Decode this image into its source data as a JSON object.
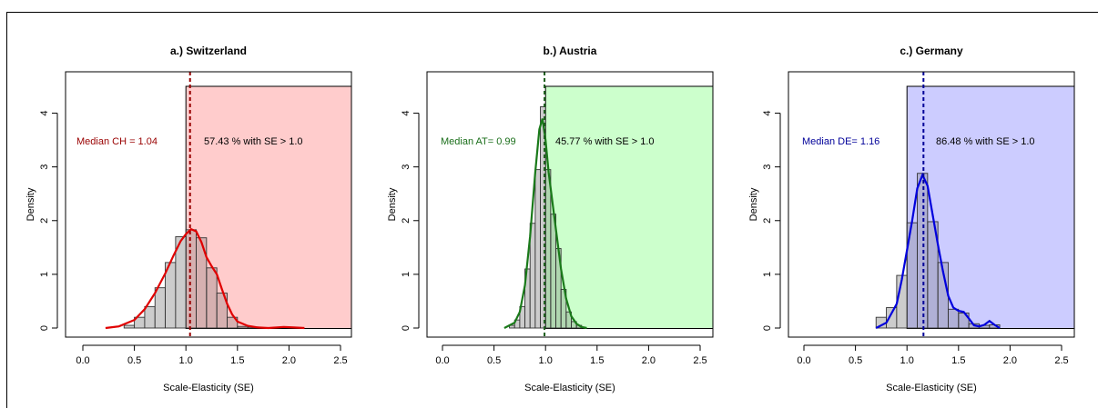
{
  "chart_data": [
    {
      "type": "histogram",
      "title": "a.) Switzerland",
      "xlabel": "Scale-Elasticity (SE)",
      "ylabel": "Density",
      "xlim": [
        0.0,
        2.5
      ],
      "ylim": [
        0,
        4.5
      ],
      "x_ticks": [
        "0.0",
        "0.5",
        "1.0",
        "1.5",
        "2.0",
        "2.5"
      ],
      "y_ticks": [
        "0",
        "1",
        "2",
        "3",
        "4"
      ],
      "bin_width": 0.1,
      "bins": [
        {
          "x0": 0.4,
          "x1": 0.5,
          "density": 0.05
        },
        {
          "x0": 0.5,
          "x1": 0.6,
          "density": 0.2
        },
        {
          "x0": 0.6,
          "x1": 0.7,
          "density": 0.4
        },
        {
          "x0": 0.7,
          "x1": 0.8,
          "density": 0.75
        },
        {
          "x0": 0.8,
          "x1": 0.9,
          "density": 1.22
        },
        {
          "x0": 0.9,
          "x1": 1.0,
          "density": 1.7
        },
        {
          "x0": 1.0,
          "x1": 1.1,
          "density": 1.83
        },
        {
          "x0": 1.1,
          "x1": 1.2,
          "density": 1.68
        },
        {
          "x0": 1.2,
          "x1": 1.3,
          "density": 1.12
        },
        {
          "x0": 1.3,
          "x1": 1.4,
          "density": 0.65
        },
        {
          "x0": 1.4,
          "x1": 1.5,
          "density": 0.2
        },
        {
          "x0": 1.5,
          "x1": 1.6,
          "density": 0.03
        },
        {
          "x0": 1.6,
          "x1": 1.7,
          "density": 0.02
        }
      ],
      "density_curve": [
        [
          0.22,
          0.0
        ],
        [
          0.35,
          0.03
        ],
        [
          0.5,
          0.15
        ],
        [
          0.6,
          0.35
        ],
        [
          0.7,
          0.65
        ],
        [
          0.8,
          1.02
        ],
        [
          0.88,
          1.35
        ],
        [
          0.95,
          1.62
        ],
        [
          1.0,
          1.75
        ],
        [
          1.05,
          1.84
        ],
        [
          1.1,
          1.8
        ],
        [
          1.15,
          1.6
        ],
        [
          1.2,
          1.32
        ],
        [
          1.25,
          1.15
        ],
        [
          1.3,
          1.0
        ],
        [
          1.35,
          0.72
        ],
        [
          1.4,
          0.45
        ],
        [
          1.45,
          0.25
        ],
        [
          1.5,
          0.12
        ],
        [
          1.6,
          0.04
        ],
        [
          1.7,
          0.01
        ],
        [
          1.8,
          0.0
        ],
        [
          1.95,
          0.02
        ],
        [
          2.05,
          0.01
        ],
        [
          2.15,
          0.0
        ]
      ],
      "median": 1.04,
      "median_label": "Median CH = 1.04",
      "share_label": "57.43 % with SE > 1.0",
      "shade_from": 1.0,
      "colors": {
        "line": "#e00000",
        "shade": "#ffcccc",
        "median_text": "#990000",
        "bar": "#cccccc"
      }
    },
    {
      "type": "histogram",
      "title": "b.) Austria",
      "xlabel": "Scale-Elasticity (SE)",
      "ylabel": "Density",
      "xlim": [
        0.0,
        2.5
      ],
      "ylim": [
        0,
        4.5
      ],
      "x_ticks": [
        "0.0",
        "0.5",
        "1.0",
        "1.5",
        "2.0",
        "2.5"
      ],
      "y_ticks": [
        "0",
        "1",
        "2",
        "3",
        "4"
      ],
      "bin_width": 0.05,
      "bins": [
        {
          "x0": 0.65,
          "x1": 0.7,
          "density": 0.05
        },
        {
          "x0": 0.7,
          "x1": 0.75,
          "density": 0.15
        },
        {
          "x0": 0.75,
          "x1": 0.8,
          "density": 0.4
        },
        {
          "x0": 0.8,
          "x1": 0.85,
          "density": 1.1
        },
        {
          "x0": 0.85,
          "x1": 0.9,
          "density": 1.95
        },
        {
          "x0": 0.9,
          "x1": 0.95,
          "density": 2.95
        },
        {
          "x0": 0.95,
          "x1": 1.0,
          "density": 4.12
        },
        {
          "x0": 1.0,
          "x1": 1.05,
          "density": 2.95
        },
        {
          "x0": 1.05,
          "x1": 1.1,
          "density": 2.12
        },
        {
          "x0": 1.1,
          "x1": 1.15,
          "density": 1.48
        },
        {
          "x0": 1.15,
          "x1": 1.2,
          "density": 0.72
        },
        {
          "x0": 1.2,
          "x1": 1.25,
          "density": 0.3
        },
        {
          "x0": 1.25,
          "x1": 1.3,
          "density": 0.12
        },
        {
          "x0": 1.3,
          "x1": 1.35,
          "density": 0.05
        }
      ],
      "density_curve": [
        [
          0.6,
          0.0
        ],
        [
          0.7,
          0.1
        ],
        [
          0.75,
          0.3
        ],
        [
          0.8,
          0.8
        ],
        [
          0.85,
          1.7
        ],
        [
          0.9,
          2.9
        ],
        [
          0.94,
          3.7
        ],
        [
          0.97,
          3.9
        ],
        [
          1.0,
          3.5
        ],
        [
          1.03,
          2.9
        ],
        [
          1.07,
          2.3
        ],
        [
          1.1,
          1.85
        ],
        [
          1.15,
          1.1
        ],
        [
          1.2,
          0.55
        ],
        [
          1.25,
          0.22
        ],
        [
          1.3,
          0.08
        ],
        [
          1.35,
          0.02
        ],
        [
          1.4,
          0.0
        ]
      ],
      "median": 0.99,
      "median_label": "Median AT= 0.99",
      "share_label": "45.77 % with SE > 1.0",
      "shade_from": 1.0,
      "colors": {
        "line": "#1a7a1a",
        "shade": "#ccffcc",
        "median_text": "#1a6e1a",
        "bar": "#cccccc"
      }
    },
    {
      "type": "histogram",
      "title": "c.) Germany",
      "xlabel": "Scale-Elasticity (SE)",
      "ylabel": "Density",
      "xlim": [
        0.0,
        2.5
      ],
      "ylim": [
        0,
        4.5
      ],
      "x_ticks": [
        "0.0",
        "0.5",
        "1.0",
        "1.5",
        "2.0",
        "2.5"
      ],
      "y_ticks": [
        "0",
        "1",
        "2",
        "3",
        "4"
      ],
      "bin_width": 0.1,
      "bins": [
        {
          "x0": 0.7,
          "x1": 0.8,
          "density": 0.2
        },
        {
          "x0": 0.8,
          "x1": 0.9,
          "density": 0.38
        },
        {
          "x0": 0.9,
          "x1": 1.0,
          "density": 0.98
        },
        {
          "x0": 1.0,
          "x1": 1.1,
          "density": 1.96
        },
        {
          "x0": 1.1,
          "x1": 1.2,
          "density": 2.88
        },
        {
          "x0": 1.2,
          "x1": 1.3,
          "density": 1.98
        },
        {
          "x0": 1.3,
          "x1": 1.4,
          "density": 1.22
        },
        {
          "x0": 1.4,
          "x1": 1.5,
          "density": 0.35
        },
        {
          "x0": 1.5,
          "x1": 1.6,
          "density": 0.28
        },
        {
          "x0": 1.6,
          "x1": 1.7,
          "density": 0.08
        },
        {
          "x0": 1.7,
          "x1": 1.8,
          "density": 0.05
        },
        {
          "x0": 1.8,
          "x1": 1.9,
          "density": 0.06
        }
      ],
      "density_curve": [
        [
          0.7,
          0.0
        ],
        [
          0.8,
          0.1
        ],
        [
          0.9,
          0.45
        ],
        [
          0.95,
          0.9
        ],
        [
          1.0,
          1.45
        ],
        [
          1.05,
          2.0
        ],
        [
          1.1,
          2.6
        ],
        [
          1.15,
          2.85
        ],
        [
          1.2,
          2.65
        ],
        [
          1.25,
          2.1
        ],
        [
          1.3,
          1.55
        ],
        [
          1.35,
          1.05
        ],
        [
          1.4,
          0.6
        ],
        [
          1.45,
          0.38
        ],
        [
          1.5,
          0.32
        ],
        [
          1.55,
          0.3
        ],
        [
          1.6,
          0.18
        ],
        [
          1.65,
          0.05
        ],
        [
          1.7,
          0.03
        ],
        [
          1.75,
          0.06
        ],
        [
          1.8,
          0.13
        ],
        [
          1.85,
          0.06
        ],
        [
          1.9,
          0.0
        ]
      ],
      "median": 1.16,
      "median_label": "Median DE= 1.16",
      "share_label": "86.48 % with SE > 1.0",
      "shade_from": 1.0,
      "colors": {
        "line": "#0000dd",
        "shade": "#ccccff",
        "median_text": "#000099",
        "bar": "#cccccc"
      }
    }
  ]
}
